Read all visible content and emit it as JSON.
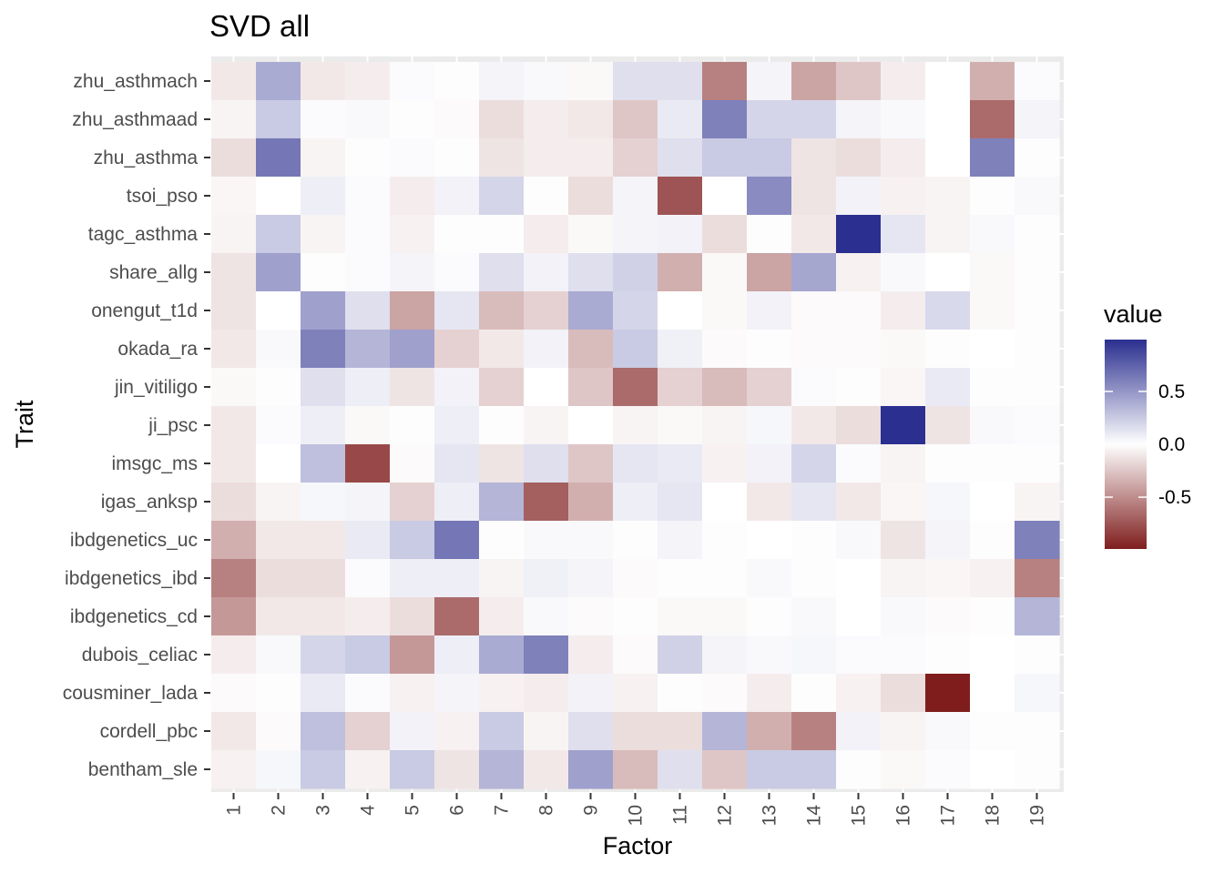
{
  "chart_data": {
    "type": "heatmap",
    "title": "SVD all",
    "xlabel": "Factor",
    "ylabel": "Trait",
    "x_categories": [
      "1",
      "2",
      "3",
      "4",
      "5",
      "6",
      "7",
      "8",
      "9",
      "10",
      "11",
      "12",
      "13",
      "14",
      "15",
      "16",
      "17",
      "18",
      "19"
    ],
    "y_categories": [
      "zhu_asthmach",
      "zhu_asthmaad",
      "zhu_asthma",
      "tsoi_pso",
      "tagc_asthma",
      "share_allg",
      "onengut_t1d",
      "okada_ra",
      "jin_vitiligo",
      "ji_psc",
      "imsgc_ms",
      "igas_anksp",
      "ibdgenetics_uc",
      "ibdgenetics_ibd",
      "ibdgenetics_cd",
      "dubois_celiac",
      "cousminer_lada",
      "cordell_pbc",
      "bentham_sle"
    ],
    "values": [
      [
        -0.1,
        0.4,
        -0.1,
        -0.08,
        0.02,
        0.01,
        0.05,
        0.03,
        -0.03,
        0.15,
        0.15,
        -0.55,
        0.05,
        -0.4,
        -0.25,
        -0.08,
        0.0,
        -0.35,
        0.02
      ],
      [
        -0.05,
        0.25,
        0.02,
        0.03,
        0.01,
        -0.02,
        -0.15,
        -0.08,
        -0.1,
        -0.25,
        0.1,
        0.6,
        0.2,
        0.2,
        0.05,
        0.03,
        0.0,
        -0.65,
        0.05
      ],
      [
        -0.15,
        0.65,
        -0.05,
        0.01,
        0.02,
        0.01,
        -0.12,
        -0.08,
        -0.08,
        -0.2,
        0.15,
        0.25,
        0.25,
        -0.12,
        -0.15,
        -0.08,
        0.0,
        0.6,
        0.01
      ],
      [
        -0.04,
        0.0,
        0.08,
        0.02,
        -0.08,
        0.06,
        0.2,
        0.01,
        -0.15,
        0.05,
        -0.75,
        0.0,
        0.55,
        -0.12,
        0.06,
        -0.06,
        -0.05,
        0.01,
        0.03
      ],
      [
        -0.05,
        0.25,
        -0.05,
        0.02,
        -0.06,
        0.01,
        0.01,
        -0.08,
        -0.03,
        0.05,
        0.06,
        -0.15,
        0.01,
        -0.1,
        0.99,
        0.12,
        -0.05,
        0.03,
        0.01
      ],
      [
        -0.12,
        0.45,
        0.01,
        0.02,
        0.05,
        0.02,
        0.15,
        0.06,
        0.15,
        0.22,
        -0.35,
        -0.03,
        -0.4,
        0.42,
        -0.06,
        0.03,
        0.0,
        -0.03,
        0.01
      ],
      [
        -0.12,
        0.0,
        0.45,
        0.15,
        -0.4,
        0.12,
        -0.3,
        -0.2,
        0.4,
        0.2,
        0.0,
        -0.03,
        0.06,
        -0.02,
        -0.02,
        -0.08,
        0.18,
        -0.03,
        0.01
      ],
      [
        -0.1,
        0.03,
        0.6,
        0.35,
        0.45,
        -0.2,
        -0.1,
        0.06,
        -0.3,
        0.25,
        0.07,
        -0.02,
        0.01,
        -0.02,
        -0.02,
        -0.03,
        -0.01,
        0.0,
        0.01
      ],
      [
        -0.03,
        0.01,
        0.15,
        0.08,
        -0.12,
        0.06,
        -0.2,
        0.0,
        -0.25,
        -0.65,
        -0.2,
        -0.3,
        -0.2,
        0.02,
        0.01,
        -0.04,
        0.1,
        0.01,
        0.01
      ],
      [
        -0.1,
        0.02,
        0.08,
        -0.03,
        0.01,
        0.08,
        -0.01,
        -0.05,
        0.0,
        -0.05,
        -0.03,
        -0.05,
        0.04,
        -0.1,
        -0.15,
        0.99,
        -0.12,
        0.03,
        0.02
      ],
      [
        -0.1,
        0.0,
        0.3,
        -0.8,
        -0.02,
        0.12,
        -0.12,
        0.15,
        -0.25,
        0.12,
        0.1,
        -0.06,
        0.06,
        0.2,
        0.02,
        -0.05,
        0.01,
        0.01,
        0.01
      ],
      [
        -0.15,
        -0.05,
        0.04,
        0.05,
        -0.2,
        0.08,
        0.35,
        -0.7,
        -0.35,
        0.08,
        0.12,
        0.0,
        -0.1,
        0.12,
        -0.1,
        -0.04,
        0.04,
        0.0,
        -0.05
      ],
      [
        -0.35,
        -0.1,
        -0.1,
        0.1,
        0.25,
        0.65,
        0.01,
        0.03,
        0.03,
        0.01,
        0.05,
        0.01,
        0.0,
        -0.01,
        0.03,
        -0.12,
        0.05,
        0.01,
        0.6
      ],
      [
        -0.55,
        -0.15,
        -0.15,
        0.02,
        0.08,
        0.08,
        -0.05,
        0.07,
        0.05,
        -0.02,
        0.01,
        0.01,
        0.03,
        0.01,
        0.0,
        -0.05,
        -0.04,
        -0.06,
        -0.55
      ],
      [
        -0.45,
        -0.1,
        -0.1,
        -0.08,
        -0.15,
        -0.65,
        -0.08,
        0.03,
        -0.02,
        0.01,
        -0.03,
        -0.03,
        0.01,
        0.03,
        0.0,
        0.03,
        -0.02,
        0.01,
        0.35
      ],
      [
        -0.08,
        0.03,
        0.2,
        0.25,
        -0.45,
        0.08,
        0.4,
        0.6,
        -0.08,
        -0.02,
        0.22,
        0.05,
        0.03,
        0.04,
        0.02,
        0.02,
        -0.01,
        0.0,
        0.01
      ],
      [
        -0.02,
        0.01,
        0.1,
        0.02,
        -0.06,
        0.05,
        -0.06,
        -0.08,
        0.06,
        -0.06,
        0.01,
        -0.02,
        -0.08,
        0.01,
        -0.06,
        -0.15,
        -0.99,
        0.0,
        0.04
      ],
      [
        -0.1,
        -0.02,
        0.3,
        -0.2,
        0.06,
        -0.06,
        0.25,
        -0.05,
        0.15,
        -0.15,
        -0.15,
        0.35,
        -0.35,
        -0.55,
        0.06,
        -0.05,
        0.03,
        0.01,
        0.01
      ],
      [
        -0.06,
        0.04,
        0.25,
        -0.06,
        0.25,
        -0.12,
        0.35,
        -0.1,
        0.45,
        -0.3,
        0.15,
        -0.25,
        0.25,
        0.25,
        0.01,
        -0.03,
        0.02,
        0.0,
        0.01
      ]
    ],
    "color_scale": {
      "low": "#7f1d1d",
      "mid": "#ffffff",
      "high": "#2b2f8f",
      "domain": [
        -0.99,
        0.99
      ]
    },
    "legend": {
      "title": "value",
      "position": "right",
      "ticks": [
        0.5,
        0.0,
        -0.5
      ],
      "tick_labels": [
        "0.5",
        "0.0",
        "-0.5"
      ]
    },
    "grid": true
  }
}
